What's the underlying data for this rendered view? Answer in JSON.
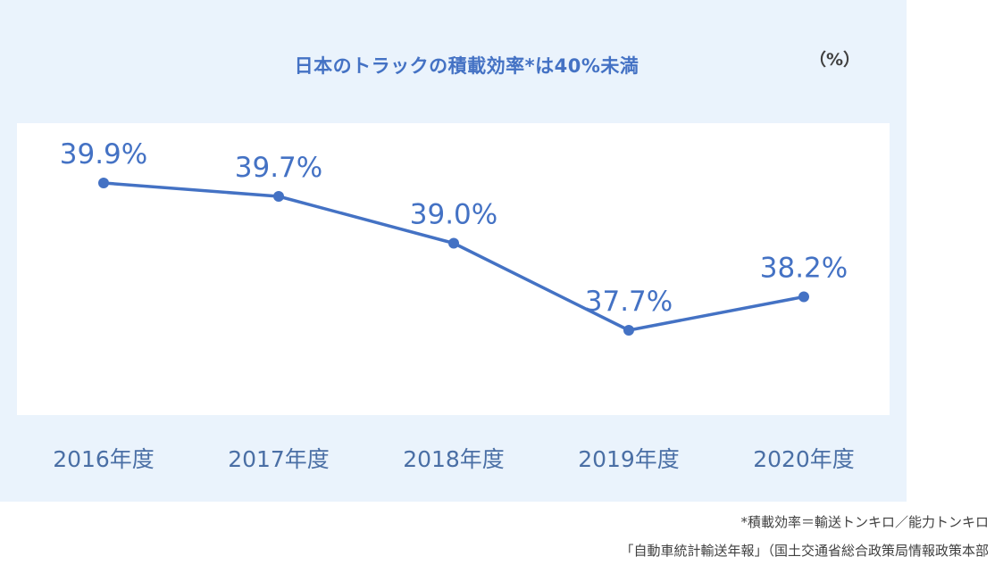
{
  "chart_data": {
    "type": "line",
    "title": "日本のトラックの積載効率*は40%未満",
    "unit_label": "（%）",
    "categories": [
      "2016年度",
      "2017年度",
      "2018年度",
      "2019年度",
      "2020年度"
    ],
    "series": [
      {
        "values": [
          39.9,
          39.7,
          39.0,
          37.7,
          38.2
        ],
        "data_labels": [
          "39.9%",
          "39.7%",
          "39.0%",
          "37.7%",
          "38.2%"
        ],
        "color": "#4472c4"
      }
    ],
    "ylim": [
      36.5,
      40.5
    ],
    "grid": false,
    "legend": "none"
  },
  "notes": {
    "definition": "*積載効率＝輸送トンキロ／能力トンキロ",
    "source": "「自動車統計輸送年報」（国土交通省総合政策局情報政策本部"
  },
  "colors": {
    "panel_bg": "#eaf3fc",
    "plot_bg": "#ffffff",
    "accent": "#4472c4"
  }
}
